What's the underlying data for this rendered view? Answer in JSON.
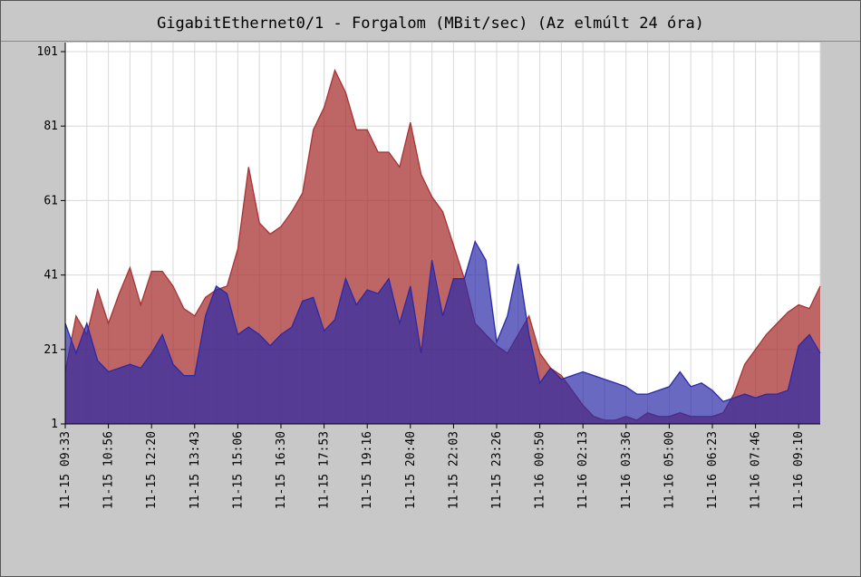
{
  "chart_data": {
    "type": "area",
    "title": "GigabitEthernet0/1 -  Forgalom (MBit/sec)  (Az elmúlt 24 óra)",
    "categories": [
      "11-15 09:33",
      null,
      null,
      null,
      "11-15 10:56",
      null,
      null,
      null,
      "11-15 12:20",
      null,
      null,
      null,
      "11-15 13:43",
      null,
      null,
      null,
      "11-15 15:06",
      null,
      null,
      null,
      "11-15 16:30",
      null,
      null,
      null,
      "11-15 17:53",
      null,
      null,
      null,
      "11-15 19:16",
      null,
      null,
      null,
      "11-15 20:40",
      null,
      null,
      null,
      "11-15 22:03",
      null,
      null,
      null,
      "11-15 23:26",
      null,
      null,
      null,
      "11-16 00:50",
      null,
      null,
      null,
      "11-16 02:13",
      null,
      null,
      null,
      "11-16 03:36",
      null,
      null,
      null,
      "11-16 05:00",
      null,
      null,
      null,
      "11-16 06:23",
      null,
      null,
      null,
      "11-16 07:46",
      null,
      null,
      null,
      "11-16 09:10",
      null,
      null
    ],
    "series": [
      {
        "color": "#a83232",
        "values": [
          15,
          30,
          25,
          37,
          28,
          36,
          43,
          33,
          42,
          42,
          38,
          32,
          30,
          35,
          37,
          38,
          48,
          70,
          55,
          52,
          54,
          58,
          63,
          80,
          86,
          96,
          90,
          80,
          80,
          74,
          74,
          70,
          82,
          68,
          62,
          58,
          49,
          40,
          28,
          25,
          22,
          20,
          25,
          30,
          20,
          16,
          14,
          10,
          6,
          3,
          2,
          2,
          3,
          2,
          4,
          3,
          3,
          4,
          3,
          3,
          3,
          4,
          9,
          17,
          21,
          25,
          28,
          31,
          33,
          32,
          38
        ]
      },
      {
        "color": "#2a2aa8",
        "values": [
          28,
          20,
          28,
          18,
          15,
          16,
          17,
          16,
          20,
          25,
          17,
          14,
          14,
          30,
          38,
          36,
          25,
          27,
          25,
          22,
          25,
          27,
          34,
          35,
          26,
          29,
          40,
          33,
          37,
          36,
          40,
          28,
          38,
          20,
          45,
          30,
          40,
          40,
          50,
          45,
          23,
          30,
          44,
          25,
          12,
          16,
          13,
          14,
          15,
          14,
          13,
          12,
          11,
          9,
          9,
          10,
          11,
          15,
          11,
          12,
          10,
          7,
          8,
          9,
          8,
          9,
          9,
          10,
          22,
          25,
          20
        ]
      }
    ],
    "ylim": [
      1,
      101
    ],
    "yticks": [
      1,
      21,
      41,
      61,
      81,
      101
    ],
    "grid": true
  }
}
